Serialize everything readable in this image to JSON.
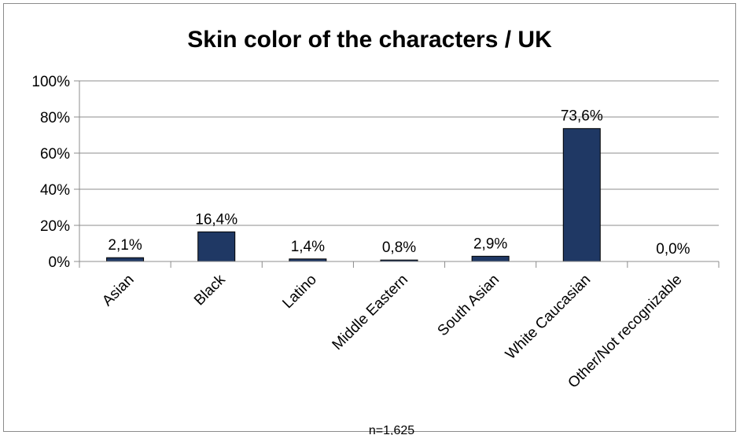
{
  "chart_data": {
    "type": "bar",
    "title": "Skin color of the characters / UK",
    "categories": [
      "Asian",
      "Black",
      "Latino",
      "Middle Eastern",
      "South Asian",
      "White Caucasian",
      "Other/Not recognizable"
    ],
    "values": [
      2.1,
      16.4,
      1.4,
      0.8,
      2.9,
      73.6,
      0.0
    ],
    "data_labels": [
      "2,1%",
      "16,4%",
      "1,4%",
      "0,8%",
      "2,9%",
      "73,6%",
      "0,0%"
    ],
    "y_ticks": [
      0,
      20,
      40,
      60,
      80,
      100
    ],
    "y_tick_labels": [
      "0%",
      "20%",
      "40%",
      "60%",
      "80%",
      "100%"
    ],
    "ylim": [
      0,
      100
    ],
    "xlabel": "",
    "ylabel": "",
    "grid": true,
    "legend": "none",
    "note": "n=1,625",
    "colors": {
      "bar": "#1f3864",
      "grid": "#8c8c8c",
      "axis": "#8c8c8c"
    }
  }
}
